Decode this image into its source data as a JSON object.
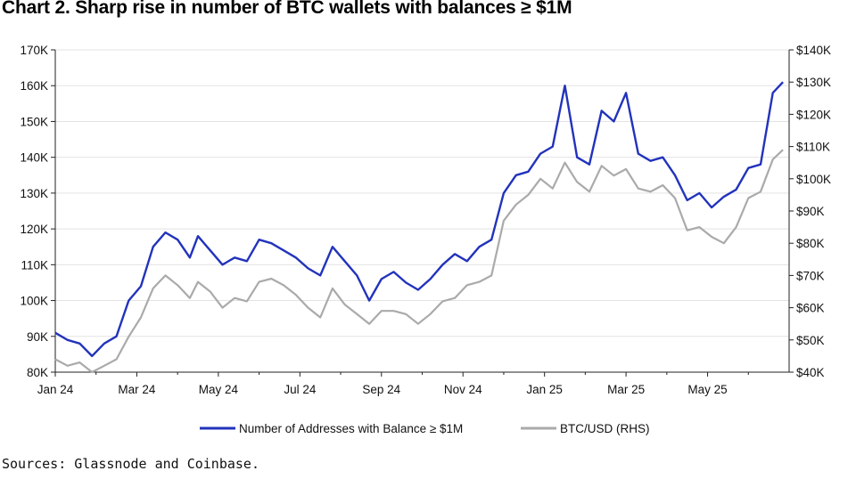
{
  "title": "Chart 2. Sharp rise in number of BTC wallets with balances ≥ $1M",
  "source": "Sources: Glassnode and Coinbase.",
  "chart_data": {
    "type": "line",
    "left_ticks": [
      "80K",
      "90K",
      "100K",
      "110K",
      "120K",
      "130K",
      "140K",
      "150K",
      "160K",
      "170K"
    ],
    "right_ticks": [
      "$40K",
      "$50K",
      "$60K",
      "$70K",
      "$80K",
      "$90K",
      "$100K",
      "$110K",
      "$120K",
      "$130K",
      "$140K"
    ],
    "x_ticks": [
      "Jan 24",
      "Mar 24",
      "May 24",
      "Jul 24",
      "Sep 24",
      "Nov 24",
      "Jan 25",
      "Mar 25",
      "May 25"
    ],
    "x_range": [
      0,
      18
    ],
    "ylim_left": [
      80000,
      170000
    ],
    "ylim_right": [
      40000,
      140000
    ],
    "grid": "horizontal",
    "legend_position": "bottom",
    "series": [
      {
        "name": "Number of Addresses with Balance ≥ $1M",
        "axis": "left",
        "color": "#2233bb",
        "x": [
          0,
          0.3,
          0.6,
          0.9,
          1.2,
          1.5,
          1.8,
          2.1,
          2.4,
          2.7,
          3.0,
          3.3,
          3.5,
          3.8,
          4.1,
          4.4,
          4.7,
          5.0,
          5.3,
          5.6,
          5.9,
          6.2,
          6.5,
          6.8,
          7.1,
          7.4,
          7.7,
          8.0,
          8.3,
          8.6,
          8.9,
          9.2,
          9.5,
          9.8,
          10.1,
          10.4,
          10.7,
          11.0,
          11.3,
          11.6,
          11.9,
          12.2,
          12.5,
          12.8,
          13.1,
          13.4,
          13.7,
          14.0,
          14.3,
          14.6,
          14.9,
          15.2,
          15.5,
          15.8,
          16.1,
          16.4,
          16.7,
          17.0,
          17.3,
          17.6,
          17.85
        ],
        "y": [
          91000,
          89000,
          88000,
          84500,
          88000,
          90000,
          100000,
          104000,
          115000,
          119000,
          117000,
          112000,
          118000,
          114000,
          110000,
          112000,
          111000,
          117000,
          116000,
          114000,
          112000,
          109000,
          107000,
          115000,
          111000,
          107000,
          100000,
          106000,
          108000,
          105000,
          103000,
          106000,
          110000,
          113000,
          111000,
          115000,
          117000,
          130000,
          135000,
          136000,
          141000,
          143000,
          160000,
          140000,
          138000,
          153000,
          150000,
          158000,
          141000,
          139000,
          140000,
          135000,
          128000,
          130000,
          126000,
          129000,
          131000,
          137000,
          138000,
          158000,
          161000
        ]
      },
      {
        "name": "BTC/USD (RHS)",
        "axis": "right",
        "color": "#aaaaaa",
        "x": [
          0,
          0.3,
          0.6,
          0.9,
          1.2,
          1.5,
          1.8,
          2.1,
          2.4,
          2.7,
          3.0,
          3.3,
          3.5,
          3.8,
          4.1,
          4.4,
          4.7,
          5.0,
          5.3,
          5.6,
          5.9,
          6.2,
          6.5,
          6.8,
          7.1,
          7.4,
          7.7,
          8.0,
          8.3,
          8.6,
          8.9,
          9.2,
          9.5,
          9.8,
          10.1,
          10.4,
          10.7,
          11.0,
          11.3,
          11.6,
          11.9,
          12.2,
          12.5,
          12.8,
          13.1,
          13.4,
          13.7,
          14.0,
          14.3,
          14.6,
          14.9,
          15.2,
          15.5,
          15.8,
          16.1,
          16.4,
          16.7,
          17.0,
          17.3,
          17.6,
          17.85
        ],
        "y": [
          44000,
          42000,
          43000,
          40000,
          42000,
          44000,
          51000,
          57000,
          66000,
          70000,
          67000,
          63000,
          68000,
          65000,
          60000,
          63000,
          62000,
          68000,
          69000,
          67000,
          64000,
          60000,
          57000,
          66000,
          61000,
          58000,
          55000,
          59000,
          59000,
          58000,
          55000,
          58000,
          62000,
          63000,
          67000,
          68000,
          70000,
          87000,
          92000,
          95000,
          100000,
          97000,
          105000,
          99000,
          96000,
          104000,
          101000,
          103000,
          97000,
          96000,
          98000,
          94000,
          84000,
          85000,
          82000,
          80000,
          85000,
          94000,
          96000,
          106000,
          109000
        ]
      }
    ]
  }
}
